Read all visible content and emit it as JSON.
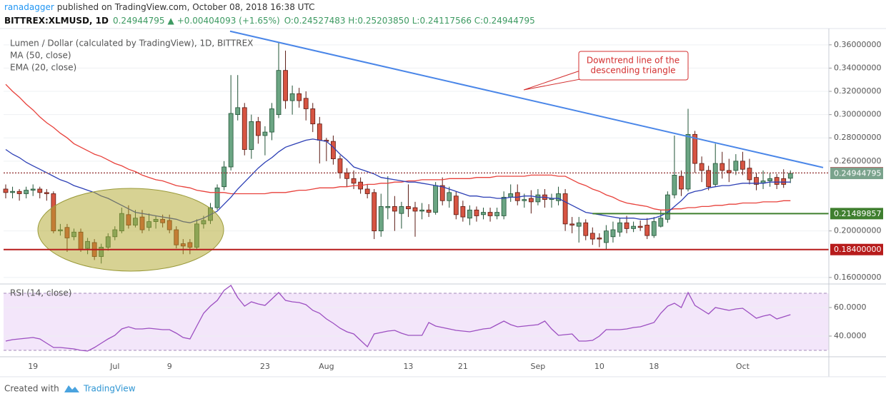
{
  "header": {
    "author": "ranadagger",
    "published": "published on TradingView.com, October 08, 2018 16:38 UTC",
    "symbol": "BITTREX:XLMUSD, 1D",
    "last": "0.24944795",
    "arrow": "▲",
    "change": "+0.00404093 (+1.65%)",
    "ohlc": "O:0.24527483 H:0.25203850 L:0.24117566 C:0.24944795"
  },
  "footer": {
    "created": "Created with",
    "brand": "TradingView"
  },
  "chart_data": [
    {
      "type": "candlestick",
      "title": "Lumen / Dollar (calculated by TradingView), 1D, BITTREX",
      "categories": [
        null,
        null,
        null,
        null,
        "19",
        null,
        null,
        null,
        null,
        null,
        null,
        null,
        null,
        null,
        null,
        null,
        "Jul",
        null,
        null,
        null,
        null,
        null,
        null,
        null,
        "9",
        null,
        null,
        null,
        null,
        null,
        null,
        null,
        null,
        null,
        null,
        null,
        null,
        null,
        "23",
        null,
        null,
        null,
        null,
        null,
        null,
        null,
        null,
        "Aug",
        null,
        null,
        null,
        null,
        null,
        null,
        null,
        null,
        null,
        null,
        null,
        "13",
        null,
        null,
        null,
        null,
        null,
        null,
        null,
        "21",
        null,
        null,
        null,
        null,
        null,
        null,
        null,
        null,
        null,
        null,
        "Sep",
        null,
        null,
        null,
        null,
        null,
        null,
        null,
        null,
        "10",
        null,
        null,
        null,
        null,
        null,
        null,
        null,
        "18",
        null,
        null,
        null,
        null,
        null,
        null,
        null,
        null,
        null,
        null,
        null,
        null,
        "Oct",
        null,
        null,
        null,
        null,
        null,
        null,
        null
      ],
      "open": [
        0.236,
        0.233,
        0.234,
        0.232,
        0.235,
        0.236,
        0.233,
        0.232,
        0.2,
        0.203,
        0.195,
        0.199,
        0.185,
        0.19,
        0.178,
        0.186,
        0.195,
        0.2,
        0.214,
        0.205,
        0.212,
        0.203,
        0.208,
        0.21,
        0.209,
        0.201,
        0.189,
        0.19,
        0.186,
        0.206,
        0.209,
        0.22,
        0.238,
        0.255,
        0.3,
        0.306,
        0.27,
        0.294,
        0.282,
        0.285,
        0.3,
        0.338,
        0.312,
        0.318,
        0.314,
        0.305,
        0.292,
        0.278,
        0.277,
        0.262,
        0.25,
        0.245,
        0.242,
        0.236,
        0.233,
        0.2,
        0.22,
        0.221,
        0.215,
        0.221,
        0.22,
        0.217,
        0.218,
        0.216,
        0.239,
        0.226,
        0.23,
        0.221,
        0.211,
        0.218,
        0.214,
        0.216,
        0.213,
        0.213,
        0.229,
        0.233,
        0.226,
        0.228,
        0.225,
        0.231,
        0.227,
        0.226,
        0.232,
        0.206,
        0.204,
        0.207,
        0.198,
        0.194,
        0.19,
        0.195,
        0.199,
        0.207,
        0.202,
        0.204,
        0.205,
        0.196,
        0.204,
        0.21,
        0.231,
        0.247,
        0.236,
        0.283,
        0.258,
        0.252,
        0.24,
        0.258,
        0.252,
        0.252,
        0.26,
        0.254,
        0.246,
        0.241,
        0.243,
        0.246,
        0.245,
        0.24527483
      ],
      "high": [
        0.24,
        0.238,
        0.236,
        0.238,
        0.24,
        0.238,
        0.236,
        0.234,
        0.206,
        0.206,
        0.202,
        0.202,
        0.194,
        0.193,
        0.189,
        0.198,
        0.204,
        0.22,
        0.222,
        0.218,
        0.218,
        0.215,
        0.213,
        0.214,
        0.214,
        0.204,
        0.193,
        0.193,
        0.21,
        0.213,
        0.224,
        0.24,
        0.26,
        0.334,
        0.334,
        0.31,
        0.3,
        0.298,
        0.29,
        0.31,
        0.362,
        0.355,
        0.325,
        0.323,
        0.32,
        0.31,
        0.298,
        0.28,
        0.282,
        0.265,
        0.254,
        0.252,
        0.246,
        0.24,
        0.236,
        0.232,
        0.247,
        0.23,
        0.225,
        0.24,
        0.225,
        0.224,
        0.223,
        0.242,
        0.246,
        0.238,
        0.234,
        0.226,
        0.222,
        0.221,
        0.22,
        0.22,
        0.22,
        0.234,
        0.24,
        0.24,
        0.232,
        0.235,
        0.236,
        0.236,
        0.232,
        0.238,
        0.236,
        0.212,
        0.212,
        0.21,
        0.203,
        0.198,
        0.205,
        0.208,
        0.211,
        0.213,
        0.208,
        0.209,
        0.211,
        0.212,
        0.218,
        0.234,
        0.282,
        0.252,
        0.305,
        0.286,
        0.264,
        0.256,
        0.275,
        0.268,
        0.262,
        0.266,
        0.268,
        0.262,
        0.25,
        0.252,
        0.25,
        0.249,
        0.253,
        0.2520385
      ],
      "low": [
        0.228,
        0.228,
        0.226,
        0.228,
        0.23,
        0.228,
        0.226,
        0.198,
        0.196,
        0.182,
        0.192,
        0.182,
        0.18,
        0.175,
        0.172,
        0.183,
        0.192,
        0.198,
        0.202,
        0.203,
        0.198,
        0.2,
        0.202,
        0.203,
        0.198,
        0.185,
        0.18,
        0.18,
        0.184,
        0.202,
        0.206,
        0.218,
        0.235,
        0.252,
        0.295,
        0.265,
        0.262,
        0.275,
        0.265,
        0.278,
        0.297,
        0.305,
        0.3,
        0.306,
        0.295,
        0.285,
        0.258,
        0.26,
        0.257,
        0.245,
        0.238,
        0.236,
        0.232,
        0.228,
        0.193,
        0.195,
        0.21,
        0.2,
        0.202,
        0.212,
        0.195,
        0.21,
        0.212,
        0.214,
        0.222,
        0.22,
        0.21,
        0.208,
        0.205,
        0.208,
        0.21,
        0.208,
        0.21,
        0.21,
        0.225,
        0.222,
        0.22,
        0.215,
        0.222,
        0.22,
        0.22,
        0.222,
        0.2,
        0.198,
        0.19,
        0.192,
        0.188,
        0.186,
        0.184,
        0.19,
        0.195,
        0.198,
        0.199,
        0.2,
        0.193,
        0.194,
        0.203,
        0.207,
        0.228,
        0.23,
        0.234,
        0.25,
        0.242,
        0.235,
        0.238,
        0.245,
        0.242,
        0.248,
        0.248,
        0.24,
        0.235,
        0.236,
        0.238,
        0.236,
        0.237,
        0.24117566
      ],
      "close": [
        0.233,
        0.234,
        0.232,
        0.235,
        0.236,
        0.233,
        0.232,
        0.2,
        0.201,
        0.194,
        0.199,
        0.184,
        0.191,
        0.178,
        0.186,
        0.195,
        0.201,
        0.215,
        0.205,
        0.211,
        0.201,
        0.208,
        0.21,
        0.207,
        0.201,
        0.188,
        0.187,
        0.186,
        0.206,
        0.209,
        0.22,
        0.237,
        0.255,
        0.301,
        0.306,
        0.27,
        0.294,
        0.282,
        0.285,
        0.305,
        0.338,
        0.312,
        0.318,
        0.312,
        0.305,
        0.292,
        0.278,
        0.277,
        0.262,
        0.25,
        0.245,
        0.241,
        0.236,
        0.232,
        0.2,
        0.221,
        0.221,
        0.217,
        0.221,
        0.219,
        0.217,
        0.218,
        0.216,
        0.239,
        0.226,
        0.233,
        0.214,
        0.212,
        0.218,
        0.213,
        0.216,
        0.213,
        0.216,
        0.229,
        0.232,
        0.226,
        0.227,
        0.225,
        0.231,
        0.227,
        0.228,
        0.232,
        0.206,
        0.205,
        0.207,
        0.196,
        0.193,
        0.193,
        0.2,
        0.201,
        0.207,
        0.202,
        0.204,
        0.203,
        0.196,
        0.208,
        0.211,
        0.231,
        0.248,
        0.236,
        0.283,
        0.258,
        0.252,
        0.238,
        0.258,
        0.252,
        0.25,
        0.26,
        0.253,
        0.244,
        0.24,
        0.243,
        0.245,
        0.24,
        0.24,
        0.24944795
      ],
      "up_color": "#6ba583",
      "up_border": "#225437",
      "down_color": "#d75442",
      "down_border": "#5b1a13",
      "series": [
        {
          "name": "MA (50, close)",
          "color": "#e8413b",
          "values": [
            0.326,
            0.32,
            0.315,
            0.309,
            0.304,
            0.298,
            0.293,
            0.289,
            0.284,
            0.28,
            0.275,
            0.272,
            0.269,
            0.266,
            0.264,
            0.261,
            0.258,
            0.256,
            0.253,
            0.251,
            0.248,
            0.246,
            0.244,
            0.243,
            0.241,
            0.239,
            0.238,
            0.237,
            0.235,
            0.234,
            0.233,
            0.233,
            0.233,
            0.232,
            0.232,
            0.232,
            0.232,
            0.232,
            0.232,
            0.233,
            0.233,
            0.233,
            0.234,
            0.235,
            0.235,
            0.236,
            0.237,
            0.237,
            0.237,
            0.238,
            0.238,
            0.239,
            0.239,
            0.24,
            0.24,
            0.241,
            0.241,
            0.242,
            0.242,
            0.243,
            0.243,
            0.244,
            0.244,
            0.244,
            0.244,
            0.245,
            0.245,
            0.245,
            0.245,
            0.246,
            0.246,
            0.246,
            0.247,
            0.247,
            0.247,
            0.247,
            0.247,
            0.248,
            0.248,
            0.248,
            0.248,
            0.247,
            0.247,
            0.244,
            0.241,
            0.239,
            0.236,
            0.234,
            0.231,
            0.229,
            0.226,
            0.224,
            0.223,
            0.222,
            0.221,
            0.219,
            0.218,
            0.218,
            0.219,
            0.219,
            0.22,
            0.22,
            0.221,
            0.221,
            0.222,
            0.222,
            0.223,
            0.223,
            0.224,
            0.224,
            0.224,
            0.225,
            0.225,
            0.225,
            0.226,
            0.226
          ]
        },
        {
          "name": "EMA (20, close)",
          "color": "#2c3fb5",
          "values": [
            0.27,
            0.266,
            0.263,
            0.259,
            0.256,
            0.253,
            0.25,
            0.247,
            0.244,
            0.242,
            0.239,
            0.237,
            0.235,
            0.233,
            0.23,
            0.228,
            0.225,
            0.222,
            0.219,
            0.216,
            0.215,
            0.214,
            0.213,
            0.212,
            0.211,
            0.21,
            0.208,
            0.207,
            0.209,
            0.211,
            0.214,
            0.217,
            0.223,
            0.229,
            0.236,
            0.242,
            0.248,
            0.254,
            0.259,
            0.263,
            0.268,
            0.272,
            0.274,
            0.276,
            0.278,
            0.279,
            0.278,
            0.277,
            0.272,
            0.266,
            0.261,
            0.255,
            0.253,
            0.251,
            0.249,
            0.246,
            0.245,
            0.244,
            0.243,
            0.242,
            0.242,
            0.241,
            0.24,
            0.239,
            0.238,
            0.236,
            0.234,
            0.232,
            0.23,
            0.23,
            0.229,
            0.229,
            0.228,
            0.228,
            0.229,
            0.229,
            0.23,
            0.23,
            0.229,
            0.229,
            0.228,
            0.228,
            0.225,
            0.222,
            0.219,
            0.216,
            0.215,
            0.214,
            0.213,
            0.212,
            0.211,
            0.211,
            0.211,
            0.21,
            0.21,
            0.211,
            0.213,
            0.216,
            0.221,
            0.226,
            0.232,
            0.234,
            0.235,
            0.237,
            0.238,
            0.239,
            0.239,
            0.24,
            0.241,
            0.241,
            0.241,
            0.241,
            0.242,
            0.242,
            0.242,
            0.242
          ]
        }
      ],
      "ylim": [
        0.155,
        0.374
      ],
      "yticks": [
        {
          "value": 0.36,
          "label": "0.36000000"
        },
        {
          "value": 0.34,
          "label": "0.34000000"
        },
        {
          "value": 0.32,
          "label": "0.32000000"
        },
        {
          "value": 0.3,
          "label": "0.30000000"
        },
        {
          "value": 0.28,
          "label": "0.28000000"
        },
        {
          "value": 0.26,
          "label": "0.26000000"
        },
        {
          "value": 0.2,
          "label": "0.20000000"
        },
        {
          "value": 0.16,
          "label": "0.16000000"
        }
      ],
      "grid": true,
      "levels": [
        {
          "value": 0.24987525,
          "color": "#8e2a2a",
          "style": "dotted"
        },
        {
          "value": 0.24944795,
          "color": "#7aa38c",
          "style": "none"
        },
        {
          "value": 0.21489857,
          "color": "#3f7f2f",
          "style": "solid"
        },
        {
          "value": 0.184,
          "label": "0.18400000",
          "color": "#b71c1c",
          "style": "solid"
        }
      ],
      "trendline": {
        "values": [
          0.3717,
          0.2545
        ],
        "color": "#4a86e8"
      },
      "annotation": [
        "Downtrend line of the",
        "descending triangle"
      ]
    },
    {
      "type": "line",
      "title": "RSI (14, close)",
      "color": "#9c4fc1",
      "values": [
        36.5,
        37.5,
        38,
        38.5,
        39,
        38,
        35,
        32,
        32,
        31.5,
        31,
        30,
        29.5,
        32,
        35,
        38,
        40.5,
        45,
        46.5,
        45,
        45,
        45.5,
        45,
        44.5,
        44.5,
        42,
        39,
        38,
        47,
        56,
        61,
        65,
        72,
        75.5,
        67,
        61,
        64,
        62.5,
        61.5,
        66,
        70.5,
        65,
        64,
        63.5,
        62,
        58,
        56,
        52,
        49,
        45.5,
        43,
        41.5,
        37,
        32.5,
        41.5,
        42.5,
        43.5,
        44,
        42,
        40.5,
        40.5,
        40.5,
        49.5,
        47,
        46,
        45,
        44,
        43.5,
        43,
        44,
        45,
        45.5,
        48,
        50.5,
        48,
        46.5,
        47,
        47.5,
        48,
        50.5,
        45,
        40.5,
        41,
        41.5,
        36.5,
        36.5,
        37,
        40,
        44.5,
        44.5,
        44.5,
        45,
        46,
        46.5,
        48,
        49.5,
        56,
        61,
        63,
        60,
        70.5,
        61.5,
        58.5,
        55.5,
        60,
        59,
        58,
        59,
        59.5,
        56,
        52.5,
        54,
        55,
        52,
        53.5,
        55
      ],
      "ylim": [
        26,
        76
      ],
      "yticks": [
        {
          "value": 60,
          "label": "60.0000"
        },
        {
          "value": 40,
          "label": "40.0000"
        }
      ],
      "bands": [
        30,
        70
      ],
      "band_color": "#f3e6fa"
    }
  ]
}
